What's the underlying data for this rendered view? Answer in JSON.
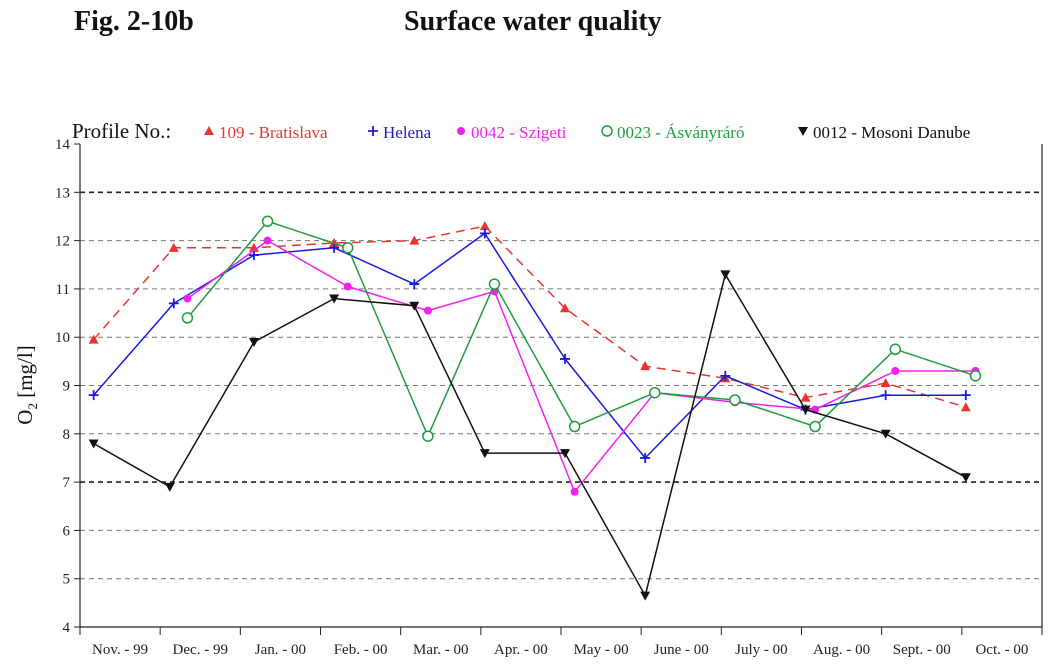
{
  "figure": {
    "label": "Fig. 2-10b",
    "title": "Surface water quality"
  },
  "chart_data": {
    "type": "line",
    "legend_title": "Profile No.:",
    "legend_placement": "top",
    "ylabel": "O2 [mg/l]",
    "ylabel_main": "O",
    "ylabel_sub": "2",
    "ylabel_rest": " [mg/l]",
    "ylim": [
      4,
      14
    ],
    "yticks": [
      4,
      5,
      6,
      7,
      8,
      9,
      10,
      11,
      12,
      13,
      14
    ],
    "grid": true,
    "categories": [
      "Nov. - 99",
      "Dec. - 99",
      "Jan. - 00",
      "Feb. - 00",
      "Mar. - 00",
      "Apr. - 00",
      "May - 00",
      "June - 00",
      "July - 00",
      "Aug. - 00",
      "Sept. - 00",
      "Oct. - 00"
    ],
    "series": [
      {
        "name": "109 - Bratislava",
        "color": "#e8352e",
        "marker": "triangle-up",
        "dashed": true,
        "points": [
          {
            "x": 0.17,
            "y": 9.95
          },
          {
            "x": 1.17,
            "y": 11.85
          },
          {
            "x": 2.17,
            "y": 11.85
          },
          {
            "x": 3.17,
            "y": 11.95
          },
          {
            "x": 4.17,
            "y": 12.0
          },
          {
            "x": 5.05,
            "y": 12.3
          },
          {
            "x": 6.05,
            "y": 10.6
          },
          {
            "x": 7.05,
            "y": 9.4
          },
          {
            "x": 8.05,
            "y": 9.15
          },
          {
            "x": 9.05,
            "y": 8.75
          },
          {
            "x": 10.05,
            "y": 9.05
          },
          {
            "x": 11.05,
            "y": 8.55
          }
        ]
      },
      {
        "name": "Helena",
        "color": "#1a1adb",
        "marker": "plus",
        "dashed": false,
        "points": [
          {
            "x": 0.17,
            "y": 8.8
          },
          {
            "x": 1.17,
            "y": 10.7
          },
          {
            "x": 2.17,
            "y": 11.7
          },
          {
            "x": 3.17,
            "y": 11.85
          },
          {
            "x": 4.17,
            "y": 11.1
          },
          {
            "x": 5.05,
            "y": 12.15
          },
          {
            "x": 6.05,
            "y": 9.55
          },
          {
            "x": 7.05,
            "y": 7.5
          },
          {
            "x": 8.05,
            "y": 9.2
          },
          {
            "x": 9.05,
            "y": 8.5
          },
          {
            "x": 10.05,
            "y": 8.8
          },
          {
            "x": 11.05,
            "y": 8.8
          }
        ]
      },
      {
        "name": "0042 - Szigeti",
        "color": "#f020ee",
        "marker": "filled-circle",
        "dashed": false,
        "points": [
          {
            "x": 1.34,
            "y": 10.8
          },
          {
            "x": 2.34,
            "y": 12.0
          },
          {
            "x": 3.34,
            "y": 11.05
          },
          {
            "x": 4.34,
            "y": 10.55
          },
          {
            "x": 5.17,
            "y": 10.95
          },
          {
            "x": 6.17,
            "y": 6.8
          },
          {
            "x": 7.17,
            "y": 8.85
          },
          {
            "x": 8.17,
            "y": 8.65
          },
          {
            "x": 9.17,
            "y": 8.5
          },
          {
            "x": 10.17,
            "y": 9.3
          },
          {
            "x": 11.17,
            "y": 9.3
          }
        ]
      },
      {
        "name": "0023 - Ásványráró",
        "color": "#1e9e3c",
        "marker": "open-circle",
        "dashed": false,
        "points": [
          {
            "x": 1.34,
            "y": 10.4
          },
          {
            "x": 2.34,
            "y": 12.4
          },
          {
            "x": 3.34,
            "y": 11.85
          },
          {
            "x": 4.34,
            "y": 7.95
          },
          {
            "x": 5.17,
            "y": 11.1
          },
          {
            "x": 6.17,
            "y": 8.15
          },
          {
            "x": 7.17,
            "y": 8.85
          },
          {
            "x": 8.17,
            "y": 8.7
          },
          {
            "x": 9.17,
            "y": 8.15
          },
          {
            "x": 10.17,
            "y": 9.75
          },
          {
            "x": 11.17,
            "y": 9.2
          }
        ]
      },
      {
        "name": "0012 - Mosoni Danube",
        "color": "#111111",
        "marker": "triangle-down",
        "dashed": false,
        "points": [
          {
            "x": 0.17,
            "y": 7.8
          },
          {
            "x": 1.12,
            "y": 6.9
          },
          {
            "x": 2.17,
            "y": 9.9
          },
          {
            "x": 3.17,
            "y": 10.8
          },
          {
            "x": 4.17,
            "y": 10.65
          },
          {
            "x": 5.05,
            "y": 7.6
          },
          {
            "x": 6.05,
            "y": 7.6
          },
          {
            "x": 7.05,
            "y": 4.65
          },
          {
            "x": 8.05,
            "y": 11.3
          },
          {
            "x": 9.05,
            "y": 8.5
          },
          {
            "x": 10.05,
            "y": 8.0
          },
          {
            "x": 11.05,
            "y": 7.1
          }
        ]
      }
    ]
  }
}
